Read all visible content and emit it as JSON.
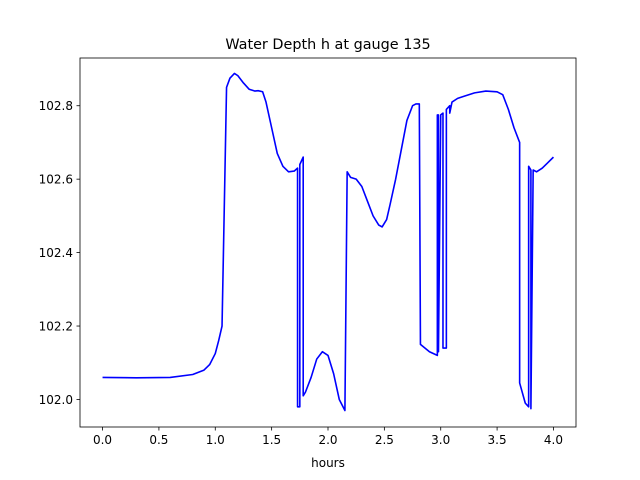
{
  "chart_data": {
    "type": "line",
    "title": "Water Depth h at gauge 135",
    "xlabel": "hours",
    "ylabel": "",
    "xlim": [
      -0.2,
      4.2
    ],
    "ylim": [
      101.925,
      102.93
    ],
    "grid": false,
    "legend": "none",
    "x_ticks": [
      0.0,
      0.5,
      1.0,
      1.5,
      2.0,
      2.5,
      3.0,
      3.5,
      4.0
    ],
    "x_tick_labels": [
      "0.0",
      "0.5",
      "1.0",
      "1.5",
      "2.0",
      "2.5",
      "3.0",
      "3.5",
      "4.0"
    ],
    "y_ticks": [
      102.0,
      102.2,
      102.4,
      102.6,
      102.8
    ],
    "y_tick_labels": [
      "102.0",
      "102.2",
      "102.4",
      "102.6",
      "102.8"
    ],
    "series": [
      {
        "color": "#0000ff",
        "x": [
          0.0,
          0.3,
          0.6,
          0.8,
          0.9,
          0.95,
          1.0,
          1.03,
          1.06,
          1.1,
          1.1,
          1.13,
          1.17,
          1.2,
          1.25,
          1.3,
          1.35,
          1.38,
          1.42,
          1.45,
          1.5,
          1.55,
          1.6,
          1.65,
          1.7,
          1.73,
          1.73,
          1.75,
          1.75,
          1.78,
          1.78,
          1.8,
          1.85,
          1.9,
          1.95,
          2.0,
          2.05,
          2.1,
          2.15,
          2.17,
          2.17,
          2.2,
          2.25,
          2.3,
          2.35,
          2.4,
          2.45,
          2.48,
          2.52,
          2.55,
          2.6,
          2.65,
          2.7,
          2.75,
          2.78,
          2.81,
          2.82,
          2.82,
          2.9,
          2.97,
          2.97,
          2.98,
          2.98,
          3.0,
          3.0,
          3.02,
          3.02,
          3.05,
          3.05,
          3.08,
          3.08,
          3.1,
          3.15,
          3.2,
          3.3,
          3.4,
          3.5,
          3.55,
          3.6,
          3.65,
          3.7,
          3.7,
          3.75,
          3.78,
          3.78,
          3.8,
          3.8,
          3.82,
          3.85,
          3.9,
          3.95,
          4.0
        ],
        "y": [
          102.06,
          102.059,
          102.06,
          102.068,
          102.08,
          102.095,
          102.125,
          102.16,
          102.2,
          102.85,
          102.85,
          102.875,
          102.888,
          102.882,
          102.862,
          102.845,
          102.84,
          102.841,
          102.838,
          102.81,
          102.74,
          102.67,
          102.635,
          102.62,
          102.622,
          102.63,
          101.98,
          101.98,
          102.64,
          102.66,
          102.01,
          102.02,
          102.06,
          102.11,
          102.13,
          102.12,
          102.07,
          102.0,
          101.97,
          102.62,
          102.62,
          102.605,
          102.6,
          102.58,
          102.54,
          102.5,
          102.475,
          102.47,
          102.49,
          102.53,
          102.6,
          102.68,
          102.76,
          102.8,
          102.805,
          102.805,
          102.15,
          102.15,
          102.13,
          102.12,
          102.775,
          102.775,
          102.13,
          102.775,
          102.775,
          102.78,
          102.14,
          102.14,
          102.79,
          102.8,
          102.78,
          102.81,
          102.82,
          102.825,
          102.835,
          102.84,
          102.838,
          102.83,
          102.79,
          102.74,
          102.7,
          102.045,
          101.99,
          101.98,
          102.635,
          102.625,
          101.975,
          102.625,
          102.62,
          102.63,
          102.645,
          102.66
        ]
      }
    ]
  }
}
